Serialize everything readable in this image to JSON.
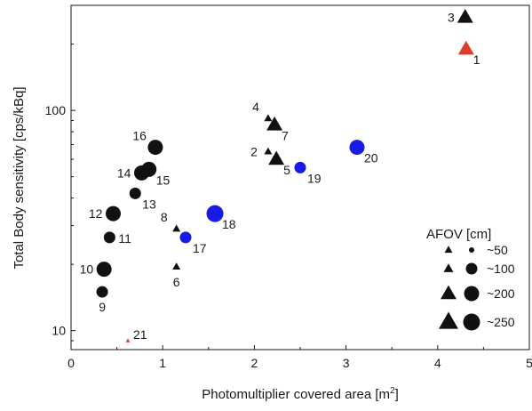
{
  "chart_data": {
    "type": "scatter",
    "title": "",
    "xlabel": "Photomultiplier covered area [m",
    "xlabel_superscript": "2",
    "xlabel_suffix": "]",
    "ylabel": "Total Body sensitivity [cps/kBq]",
    "xlim": [
      0,
      5
    ],
    "ylim": [
      8.2,
      300
    ],
    "yscale": "log",
    "grid": false,
    "x_ticks": [
      {
        "value": 0,
        "label": "0"
      },
      {
        "value": 1,
        "label": "1"
      },
      {
        "value": 2,
        "label": "2"
      },
      {
        "value": 3,
        "label": "3"
      },
      {
        "value": 4,
        "label": "4"
      },
      {
        "value": 5,
        "label": "5"
      }
    ],
    "y_ticks": [
      {
        "value": 10,
        "label": "10"
      },
      {
        "value": 100,
        "label": "100"
      }
    ],
    "colors": {
      "black": "#111111",
      "red": "#e03c2c",
      "blue": "#1a1ae6"
    },
    "points": [
      {
        "label": "1",
        "x": 4.31,
        "y": 190,
        "shape": "triangle",
        "afov": 200,
        "color": "red",
        "label_pos": "below-right"
      },
      {
        "label": "2",
        "x": 2.15,
        "y": 65,
        "shape": "triangle",
        "afov": 50,
        "color": "black",
        "label_pos": "left"
      },
      {
        "label": "3",
        "x": 4.3,
        "y": 265,
        "shape": "triangle",
        "afov": 200,
        "color": "black",
        "label_pos": "left"
      },
      {
        "label": "4",
        "x": 2.15,
        "y": 92,
        "shape": "triangle",
        "afov": 50,
        "color": "black",
        "label_pos": "upper-left"
      },
      {
        "label": "5",
        "x": 2.24,
        "y": 60,
        "shape": "triangle",
        "afov": 200,
        "color": "black",
        "label_pos": "below-right"
      },
      {
        "label": "6",
        "x": 1.15,
        "y": 19.5,
        "shape": "triangle",
        "afov": 50,
        "color": "black",
        "label_pos": "below"
      },
      {
        "label": "7",
        "x": 2.22,
        "y": 86,
        "shape": "triangle",
        "afov": 200,
        "color": "black",
        "label_pos": "below-right"
      },
      {
        "label": "8",
        "x": 1.15,
        "y": 29,
        "shape": "triangle",
        "afov": 50,
        "color": "black",
        "label_pos": "upper-left"
      },
      {
        "label": "9",
        "x": 0.34,
        "y": 15,
        "shape": "circle",
        "afov": 100,
        "color": "black",
        "label_pos": "below"
      },
      {
        "label": "10",
        "x": 0.36,
        "y": 19,
        "shape": "circle",
        "afov": 200,
        "color": "black",
        "label_pos": "left"
      },
      {
        "label": "11",
        "x": 0.42,
        "y": 26.5,
        "shape": "circle",
        "afov": 100,
        "color": "black",
        "label_pos": "right"
      },
      {
        "label": "12",
        "x": 0.46,
        "y": 34,
        "shape": "circle",
        "afov": 200,
        "color": "black",
        "label_pos": "left"
      },
      {
        "label": "13",
        "x": 0.7,
        "y": 42,
        "shape": "circle",
        "afov": 100,
        "color": "black",
        "label_pos": "below-right"
      },
      {
        "label": "14",
        "x": 0.77,
        "y": 52,
        "shape": "circle",
        "afov": 200,
        "color": "black",
        "label_pos": "left"
      },
      {
        "label": "15",
        "x": 0.85,
        "y": 54,
        "shape": "circle",
        "afov": 200,
        "color": "black",
        "label_pos": "below-right"
      },
      {
        "label": "16",
        "x": 0.92,
        "y": 68,
        "shape": "circle",
        "afov": 200,
        "color": "black",
        "label_pos": "upper-left"
      },
      {
        "label": "17",
        "x": 1.25,
        "y": 26.5,
        "shape": "circle",
        "afov": 100,
        "color": "blue",
        "label_pos": "below-right"
      },
      {
        "label": "18",
        "x": 1.57,
        "y": 34,
        "shape": "circle",
        "afov": 250,
        "color": "blue",
        "label_pos": "below-right"
      },
      {
        "label": "19",
        "x": 2.5,
        "y": 55,
        "shape": "circle",
        "afov": 100,
        "color": "blue",
        "label_pos": "below-right"
      },
      {
        "label": "20",
        "x": 3.12,
        "y": 68,
        "shape": "circle",
        "afov": 200,
        "color": "blue",
        "label_pos": "below-right"
      },
      {
        "label": "21",
        "x": 0.62,
        "y": 9.0,
        "shape": "triangle",
        "afov": 10,
        "color": "red",
        "label_pos": "upper-right"
      }
    ],
    "legend": {
      "title": "AFOV [cm]",
      "position": "bottom-right",
      "entries": [
        {
          "label": "~50",
          "afov": 50
        },
        {
          "label": "~100",
          "afov": 100
        },
        {
          "label": "~200",
          "afov": 200
        },
        {
          "label": "~250",
          "afov": 250
        }
      ]
    }
  }
}
